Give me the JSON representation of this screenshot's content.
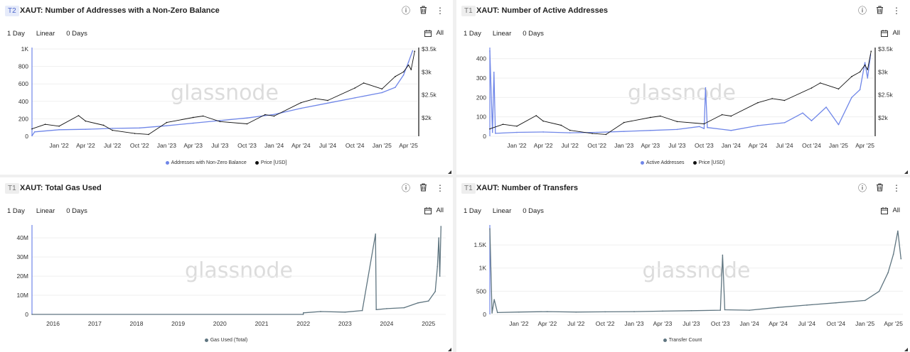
{
  "panels": [
    {
      "tier": "T2",
      "title": "XAUT: Number of Addresses with a Non-Zero Balance",
      "toolbar": {
        "resolution": "1 Day",
        "scale": "Linear",
        "sma": "0 Days",
        "range": "All"
      },
      "watermark": "glassnode",
      "legend": [
        "Addresses with Non-Zero Balance",
        "Price [USD]"
      ]
    },
    {
      "tier": "T1",
      "title": "XAUT: Number of Active Addresses",
      "toolbar": {
        "resolution": "1 Day",
        "scale": "Linear",
        "sma": "0 Days",
        "range": "All"
      },
      "watermark": "glassnode",
      "legend": [
        "Active Addresses",
        "Price [USD]"
      ]
    },
    {
      "tier": "T1",
      "title": "XAUT: Total Gas Used",
      "toolbar": {
        "resolution": "1 Day",
        "scale": "Linear",
        "sma": "0 Days",
        "range": "All"
      },
      "watermark": "glassnode",
      "legend": [
        "Gas Used (Total)"
      ]
    },
    {
      "tier": "T1",
      "title": "XAUT: Number of Transfers",
      "toolbar": {
        "resolution": "1 Day",
        "scale": "Linear",
        "sma": "0 Days",
        "range": "All"
      },
      "watermark": "glassnode",
      "legend": [
        "Transfer Count"
      ]
    }
  ],
  "icons": {
    "info": "info-icon",
    "delete": "trash-icon",
    "menu": "more-vertical-icon",
    "calendar": "calendar-icon"
  },
  "colors": {
    "blue": "#6f86e8",
    "black": "#111111",
    "slate": "#5f7580",
    "grid": "#eeeeee"
  },
  "chart_data": [
    {
      "type": "line",
      "x_ticks": [
        "Jan '22",
        "Apr '22",
        "Jul '22",
        "Oct '22",
        "Jan '23",
        "Apr '23",
        "Jul '23",
        "Oct '23",
        "Jan '24",
        "Apr '24",
        "Jul '24",
        "Oct '24",
        "Jan '25",
        "Apr '25"
      ],
      "y_ticks": [
        "0",
        "200",
        "400",
        "600",
        "800",
        "1K"
      ],
      "y2_ticks": [
        "$2k",
        "$2.5k",
        "$3k",
        "$3.5k"
      ],
      "ylim": [
        0,
        1000
      ],
      "y2lim": [
        1600,
        3500
      ],
      "x_start": "2021-10-01",
      "x_end": "2025-05-01",
      "series": [
        {
          "name": "Addresses with Non-Zero Balance",
          "color": "#6f86e8",
          "x": [
            "2021-10-01",
            "2021-10-10",
            "2022-01-01",
            "2022-04-01",
            "2022-07-01",
            "2022-10-01",
            "2023-01-01",
            "2023-04-01",
            "2023-07-01",
            "2023-10-01",
            "2024-01-01",
            "2024-04-01",
            "2024-07-01",
            "2024-10-01",
            "2025-01-01",
            "2025-02-15",
            "2025-03-15",
            "2025-04-01",
            "2025-04-15"
          ],
          "values": [
            5,
            50,
            75,
            80,
            90,
            95,
            120,
            150,
            180,
            210,
            250,
            320,
            380,
            440,
            500,
            560,
            700,
            850,
            980
          ]
        },
        {
          "name": "Price [USD]",
          "color": "#111111",
          "axis": "right",
          "x": [
            "2021-10-01",
            "2021-11-15",
            "2022-01-01",
            "2022-03-08",
            "2022-04-01",
            "2022-06-01",
            "2022-07-01",
            "2022-09-15",
            "2022-11-01",
            "2023-01-01",
            "2023-04-01",
            "2023-05-05",
            "2023-07-01",
            "2023-10-01",
            "2023-12-01",
            "2024-01-01",
            "2024-04-01",
            "2024-05-20",
            "2024-07-01",
            "2024-10-01",
            "2024-10-31",
            "2025-01-01",
            "2025-02-15",
            "2025-03-15",
            "2025-04-01",
            "2025-04-10",
            "2025-04-22"
          ],
          "values": [
            1760,
            1860,
            1820,
            2050,
            1930,
            1840,
            1730,
            1660,
            1640,
            1900,
            2010,
            2040,
            1920,
            1870,
            2070,
            2040,
            2330,
            2420,
            2380,
            2650,
            2760,
            2630,
            2900,
            3000,
            3150,
            3050,
            3450
          ]
        }
      ]
    },
    {
      "type": "line",
      "x_ticks": [
        "Jan '22",
        "Apr '22",
        "Jul '22",
        "Oct '22",
        "Jan '23",
        "Apr '23",
        "Jul '23",
        "Oct '23",
        "Jan '24",
        "Apr '24",
        "Jul '24",
        "Oct '24",
        "Jan '25",
        "Apr '25"
      ],
      "y_ticks": [
        "0",
        "100",
        "200",
        "300",
        "400"
      ],
      "y2_ticks": [
        "$2k",
        "$2.5k",
        "$3k",
        "$3.5k"
      ],
      "ylim": [
        0,
        450
      ],
      "y2lim": [
        1600,
        3500
      ],
      "x_start": "2021-10-01",
      "x_end": "2025-05-01",
      "series": [
        {
          "name": "Active Addresses",
          "color": "#6f86e8",
          "x": [
            "2021-10-01",
            "2021-10-10",
            "2021-10-15",
            "2021-10-20",
            "2022-01-01",
            "2022-04-01",
            "2022-07-01",
            "2022-10-01",
            "2023-01-01",
            "2023-04-01",
            "2023-07-01",
            "2023-09-15",
            "2023-10-01",
            "2023-10-06",
            "2023-10-12",
            "2024-01-01",
            "2024-04-01",
            "2024-07-01",
            "2024-09-01",
            "2024-10-01",
            "2024-11-20",
            "2025-01-01",
            "2025-02-15",
            "2025-03-15",
            "2025-04-01",
            "2025-04-10",
            "2025-04-20"
          ],
          "values": [
            440,
            20,
            330,
            15,
            20,
            22,
            18,
            20,
            25,
            30,
            35,
            50,
            40,
            250,
            45,
            30,
            55,
            70,
            120,
            80,
            150,
            60,
            200,
            240,
            380,
            300,
            420
          ]
        },
        {
          "name": "Price [USD]",
          "color": "#111111",
          "axis": "right",
          "x": [
            "2021-10-01",
            "2021-11-15",
            "2022-01-01",
            "2022-03-08",
            "2022-04-01",
            "2022-06-01",
            "2022-07-01",
            "2022-09-15",
            "2022-11-01",
            "2023-01-01",
            "2023-04-01",
            "2023-05-05",
            "2023-07-01",
            "2023-10-01",
            "2023-12-01",
            "2024-01-01",
            "2024-04-01",
            "2024-05-20",
            "2024-07-01",
            "2024-10-01",
            "2024-10-31",
            "2025-01-01",
            "2025-02-15",
            "2025-03-15",
            "2025-04-01",
            "2025-04-10",
            "2025-04-22"
          ],
          "values": [
            1760,
            1860,
            1820,
            2050,
            1930,
            1840,
            1730,
            1660,
            1640,
            1900,
            2010,
            2040,
            1920,
            1870,
            2070,
            2040,
            2330,
            2420,
            2380,
            2650,
            2760,
            2630,
            2900,
            3000,
            3150,
            3050,
            3450
          ]
        }
      ]
    },
    {
      "type": "line",
      "x_ticks": [
        "2016",
        "2017",
        "2018",
        "2019",
        "2020",
        "2021",
        "2022",
        "2023",
        "2024",
        "2025"
      ],
      "y_ticks": [
        "0",
        "10M",
        "20M",
        "30M",
        "40M"
      ],
      "ylim": [
        0,
        46000000
      ],
      "x_start": "2015-07-01",
      "x_end": "2025-06-01",
      "series": [
        {
          "name": "Gas Used (Total)",
          "color": "#5f7580",
          "x": [
            "2015-07-01",
            "2021-12-31",
            "2022-01-01",
            "2022-06-01",
            "2023-01-01",
            "2023-06-01",
            "2023-09-25",
            "2023-10-01",
            "2024-01-01",
            "2024-06-01",
            "2024-10-01",
            "2025-01-01",
            "2025-03-01",
            "2025-03-20",
            "2025-04-01",
            "2025-04-10",
            "2025-04-20"
          ],
          "values": [
            0,
            0,
            800000,
            1500000,
            1200000,
            2000000,
            42000000,
            2500000,
            3000000,
            3500000,
            6000000,
            7000000,
            12000000,
            25000000,
            40000000,
            20000000,
            46000000
          ]
        }
      ]
    },
    {
      "type": "line",
      "x_ticks": [
        "Jan '22",
        "Apr '22",
        "Jul '22",
        "Oct '22",
        "Jan '23",
        "Apr '23",
        "Jul '23",
        "Oct '23",
        "Jan '24",
        "Apr '24",
        "Jul '24",
        "Oct '24",
        "Jan '25",
        "Apr '25"
      ],
      "y_ticks": [
        "0",
        "500",
        "1K",
        "1.5K"
      ],
      "ylim": [
        0,
        1900
      ],
      "x_start": "2021-10-01",
      "x_end": "2025-05-01",
      "series": [
        {
          "name": "Transfer Count",
          "color": "#5f7580",
          "x": [
            "2021-10-01",
            "2021-10-08",
            "2021-10-15",
            "2021-10-25",
            "2022-01-01",
            "2022-04-01",
            "2022-07-01",
            "2022-10-01",
            "2023-01-01",
            "2023-04-01",
            "2023-07-01",
            "2023-10-01",
            "2023-10-08",
            "2023-10-15",
            "2024-01-01",
            "2024-04-01",
            "2024-07-01",
            "2024-10-01",
            "2025-01-01",
            "2025-02-15",
            "2025-03-15",
            "2025-04-01",
            "2025-04-15",
            "2025-04-25"
          ],
          "values": [
            1850,
            30,
            320,
            40,
            50,
            60,
            50,
            55,
            60,
            70,
            80,
            90,
            1280,
            100,
            90,
            150,
            200,
            250,
            300,
            500,
            900,
            1300,
            1800,
            1200
          ]
        }
      ]
    }
  ]
}
